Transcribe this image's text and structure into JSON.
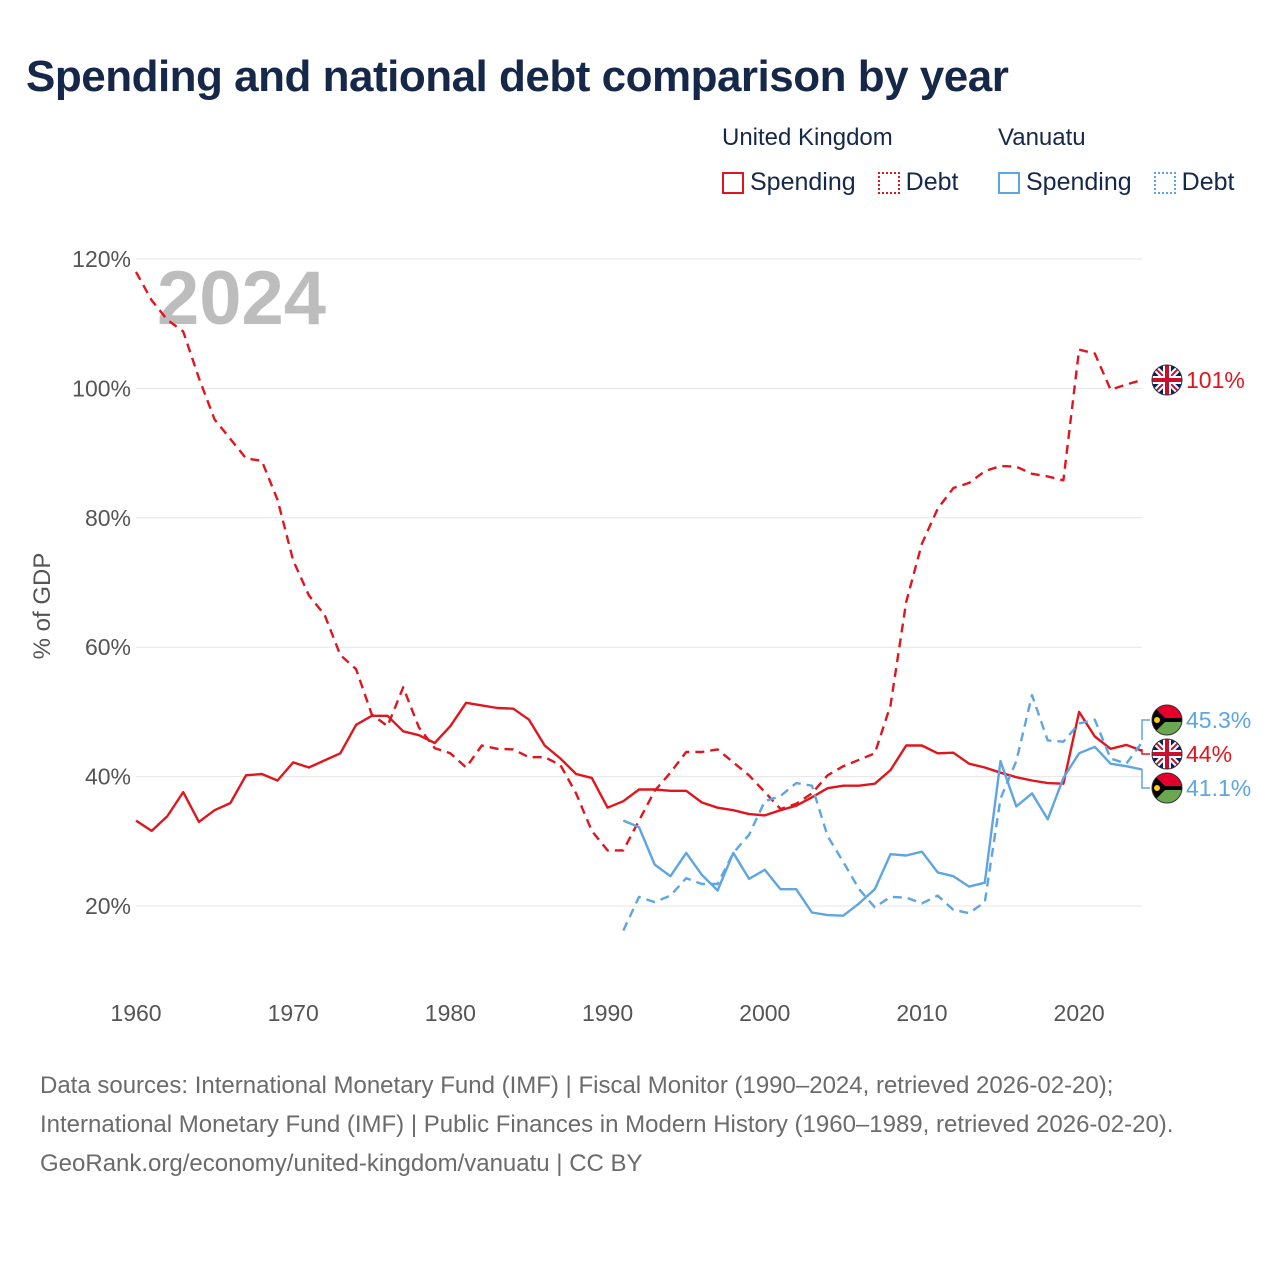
{
  "title": "Spending and national debt comparison by year",
  "legend": {
    "groups": [
      {
        "country": "United Kingdom",
        "color": "#e0161e",
        "items": [
          {
            "label": "Spending",
            "style": "solid"
          },
          {
            "label": "Debt",
            "style": "dotted"
          }
        ]
      },
      {
        "country": "Vanuatu",
        "color": "#5ea5e3",
        "items": [
          {
            "label": "Spending",
            "style": "solid"
          },
          {
            "label": "Debt",
            "style": "dotted"
          }
        ]
      }
    ]
  },
  "sources": {
    "line1": "Data sources: International Monetary Fund (IMF) | Fiscal Monitor (1990–2024, retrieved 2026-02-20); International Monetary Fund (IMF) | Public Finances in Modern History (1960–1989, retrieved 2026-02-20).",
    "line2": "GeoRank.org/economy/united-kingdom/vanuatu | CC BY"
  },
  "chart_data": {
    "type": "line",
    "year_label": "2024",
    "ylabel": "% of GDP",
    "xlim": [
      1960,
      2024
    ],
    "ylim": [
      8,
      122
    ],
    "x_ticks": [
      1960,
      1970,
      1980,
      1990,
      2000,
      2010,
      2020
    ],
    "x_tick_labels": [
      "1960",
      "1970",
      "1980",
      "1990",
      "2000",
      "2010",
      "2020"
    ],
    "y_ticks": [
      20,
      40,
      60,
      80,
      100,
      120
    ],
    "y_tick_labels": [
      "20%",
      "40%",
      "60%",
      "80%",
      "100%",
      "120%"
    ],
    "grid": true,
    "series": [
      {
        "name": "United Kingdom Spending",
        "country": "United Kingdom",
        "color": "#e0161e",
        "style": "solid",
        "start_year": 1960,
        "values": [
          33.2,
          31.6,
          33.9,
          37.6,
          33.0,
          34.8,
          35.9,
          40.2,
          40.4,
          39.4,
          42.2,
          41.4,
          42.5,
          43.6,
          48.0,
          49.4,
          49.4,
          47.0,
          46.4,
          45.2,
          47.8,
          51.4,
          51.0,
          50.6,
          50.5,
          48.8,
          44.8,
          42.8,
          40.4,
          39.8,
          35.2,
          36.2,
          38.0,
          38.0,
          37.8,
          37.8,
          36.0,
          35.2,
          34.8,
          34.2,
          34.0,
          34.8,
          35.5,
          36.8,
          38.2,
          38.6,
          38.6,
          38.9,
          41.0,
          44.8,
          44.8,
          43.6,
          43.7,
          42.0,
          41.4,
          40.6,
          39.9,
          39.4,
          39.0,
          38.9,
          50.0,
          46.2,
          44.3,
          44.9,
          44.0
        ],
        "end_label": "44%"
      },
      {
        "name": "United Kingdom Debt",
        "country": "United Kingdom",
        "color": "#e0161e",
        "style": "dashed",
        "start_year": 1960,
        "values": [
          118.0,
          113.6,
          110.6,
          108.8,
          101.6,
          95.2,
          92.2,
          89.2,
          88.8,
          82.8,
          73.4,
          68.0,
          65.0,
          58.8,
          56.6,
          49.6,
          47.8,
          53.8,
          47.6,
          44.4,
          43.6,
          41.4,
          44.8,
          44.3,
          44.2,
          43.0,
          43.0,
          41.8,
          37.4,
          31.6,
          28.6,
          28.6,
          33.2,
          37.8,
          40.6,
          43.8,
          43.8,
          44.2,
          42.2,
          40.2,
          37.6,
          35.0,
          35.8,
          37.4,
          40.2,
          41.6,
          42.6,
          43.6,
          51.0,
          67.0,
          76.0,
          81.4,
          84.6,
          85.4,
          87.2,
          88.0,
          87.9,
          86.8,
          86.4,
          85.8,
          106.0,
          105.4,
          99.8,
          100.6,
          101.3
        ],
        "end_label": "101%"
      },
      {
        "name": "Vanuatu Spending",
        "country": "Vanuatu",
        "color": "#5ea5e3",
        "style": "solid",
        "start_year": 1991,
        "values": [
          33.2,
          32.2,
          26.4,
          24.6,
          28.2,
          24.8,
          22.4,
          28.2,
          24.2,
          25.6,
          22.6,
          22.6,
          19.0,
          18.6,
          18.5,
          20.4,
          22.6,
          28.0,
          27.8,
          28.4,
          25.2,
          24.6,
          23.0,
          23.6,
          42.4,
          35.4,
          37.4,
          33.4,
          39.8,
          43.6,
          44.6,
          42.0,
          41.6,
          41.1
        ],
        "end_label": "41.1%"
      },
      {
        "name": "Vanuatu Debt",
        "country": "Vanuatu",
        "color": "#5ea5e3",
        "style": "dashed",
        "start_year": 1991,
        "values": [
          16.2,
          21.4,
          20.6,
          21.6,
          24.3,
          23.4,
          23.4,
          28.2,
          31.0,
          36.2,
          37.0,
          39.0,
          38.6,
          30.8,
          26.8,
          22.6,
          19.8,
          21.4,
          21.3,
          20.4,
          21.6,
          19.4,
          18.9,
          20.6,
          36.6,
          42.4,
          52.6,
          45.6,
          45.4,
          48.2,
          48.8,
          42.8,
          42.0,
          45.3
        ],
        "end_label": "45.3%"
      }
    ]
  }
}
